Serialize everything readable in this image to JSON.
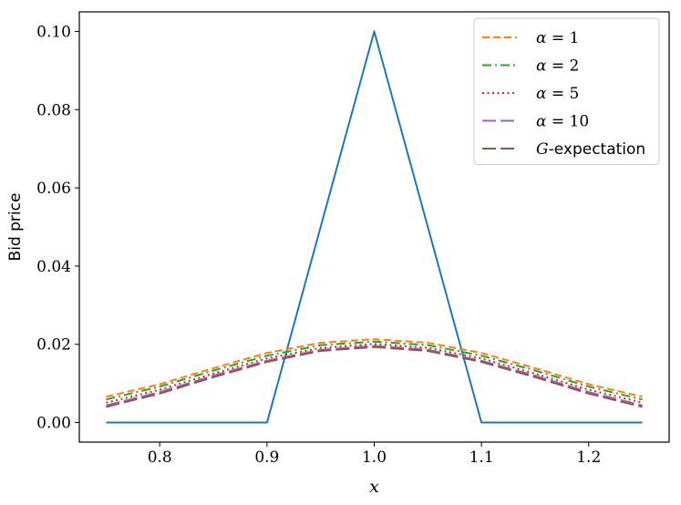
{
  "chart_data": {
    "type": "line",
    "title": "",
    "xlabel": "x",
    "ylabel": "Bid price",
    "xlim": [
      0.725,
      1.275
    ],
    "ylim": [
      -0.005,
      0.105
    ],
    "xticks": [
      0.8,
      0.9,
      1.0,
      1.1,
      1.2
    ],
    "xtick_labels": [
      "0.8",
      "0.9",
      "1.0",
      "1.1",
      "1.2"
    ],
    "yticks": [
      0.0,
      0.02,
      0.04,
      0.06,
      0.08,
      0.1
    ],
    "ytick_labels": [
      "0.00",
      "0.02",
      "0.04",
      "0.06",
      "0.08",
      "0.10"
    ],
    "grid": false,
    "legend_position": "top-right",
    "x": [
      0.75,
      0.8,
      0.85,
      0.9,
      0.95,
      1.0,
      1.05,
      1.1,
      1.15,
      1.2,
      1.25
    ],
    "series": [
      {
        "name": "",
        "color": "#1f77b4",
        "dash": "solid",
        "x": [
          0.75,
          0.9,
          1.0,
          1.1,
          1.25
        ],
        "values": [
          0.0,
          0.0,
          0.1,
          0.0,
          0.0
        ]
      },
      {
        "name": "α = 1",
        "name_math": "α",
        "name_rest": " = 1",
        "color": "#ff7f0e",
        "dash": "dashed",
        "values": [
          0.0066,
          0.0098,
          0.0139,
          0.0178,
          0.0204,
          0.0213,
          0.0204,
          0.0178,
          0.0139,
          0.0098,
          0.0066
        ]
      },
      {
        "name": "α = 2",
        "name_math": "α",
        "name_rest": " = 2",
        "color": "#2ca02c",
        "dash": "dashdot",
        "values": [
          0.0059,
          0.0092,
          0.0133,
          0.0171,
          0.0198,
          0.0207,
          0.0198,
          0.0171,
          0.0133,
          0.0092,
          0.0059
        ]
      },
      {
        "name": "α = 5",
        "name_math": "α",
        "name_rest": " = 5",
        "color": "#d62728",
        "dash": "dotted",
        "values": [
          0.0051,
          0.0084,
          0.0125,
          0.0164,
          0.0191,
          0.0201,
          0.0191,
          0.0164,
          0.0125,
          0.0084,
          0.0051
        ]
      },
      {
        "name": "α = 10",
        "name_math": "α",
        "name_rest": " = 10",
        "color": "#9467bd",
        "dash": "longdash",
        "values": [
          0.0044,
          0.0078,
          0.012,
          0.0158,
          0.0186,
          0.0196,
          0.0186,
          0.0158,
          0.012,
          0.0078,
          0.0044
        ]
      },
      {
        "name": "G-expectation",
        "name_math": "G",
        "name_rest": "-expectation",
        "color": "#8c564b",
        "dash": "longdash",
        "values": [
          0.004,
          0.0074,
          0.0116,
          0.0155,
          0.0183,
          0.0193,
          0.0183,
          0.0155,
          0.0116,
          0.0074,
          0.004
        ]
      }
    ]
  }
}
